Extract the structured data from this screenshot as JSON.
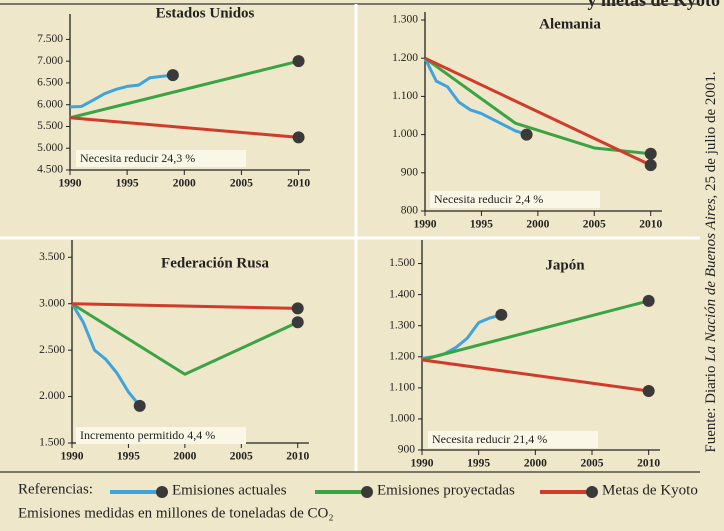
{
  "header": "y metas de Kyoto",
  "legend": {
    "title": "Referencias:",
    "entries": [
      {
        "name": "Emisiones actuales",
        "color": "#3fa3dd"
      },
      {
        "name": "Emisiones proyectadas",
        "color": "#3aa445"
      },
      {
        "name": "Metas de Kyoto",
        "color": "#d13b2b"
      }
    ]
  },
  "footnote": "Emisiones medidas en millones de toneladas de CO₂",
  "source": {
    "prefix": "Fuente: Diario ",
    "publication": "La Nación de Buenos Aires",
    "suffix": ", 25 de julio de 2001."
  },
  "chart_data": [
    {
      "type": "line",
      "title": "Estados Unidos",
      "annotation": "Necesita reducir 24,3 %",
      "xlim": [
        1990,
        2011
      ],
      "xticks": [
        1990,
        1995,
        2000,
        2005,
        2010
      ],
      "ylim": [
        4500,
        7900
      ],
      "yticks": [
        {
          "value": 4500,
          "label": "4.500"
        },
        {
          "value": 5000,
          "label": "5.000"
        },
        {
          "value": 5500,
          "label": "5.500"
        },
        {
          "value": 6000,
          "label": "6.000"
        },
        {
          "value": 6500,
          "label": "6.500"
        },
        {
          "value": 7000,
          "label": "7.000"
        },
        {
          "value": 7500,
          "label": "7.500"
        }
      ],
      "series": [
        {
          "x": [
            1990,
            1991,
            1992,
            1993,
            1994,
            1995,
            1996,
            1997,
            1998,
            1999
          ],
          "values": [
            5950,
            5960,
            6100,
            6250,
            6350,
            6420,
            6450,
            6620,
            6650,
            6680
          ]
        },
        {
          "x": [
            1990,
            2010
          ],
          "values": [
            5700,
            7000
          ]
        },
        {
          "x": [
            1990,
            2010
          ],
          "values": [
            5700,
            5250
          ]
        }
      ]
    },
    {
      "type": "line",
      "title": "Alemania",
      "annotation": "Necesita reducir 2,4 %",
      "xlim": [
        1990,
        2011
      ],
      "xticks": [
        1990,
        1995,
        2000,
        2005,
        2010
      ],
      "ylim": [
        800,
        1300
      ],
      "yticks": [
        800,
        900,
        {
          "value": 1000,
          "label": "1.000"
        },
        {
          "value": 1100,
          "label": "1.100"
        },
        {
          "value": 1200,
          "label": "1.200"
        },
        {
          "value": 1300,
          "label": "1.300"
        }
      ],
      "series": [
        {
          "x": [
            1990,
            1991,
            1992,
            1993,
            1994,
            1995,
            1996,
            1997,
            1998,
            1999
          ],
          "values": [
            1200,
            1140,
            1125,
            1085,
            1065,
            1055,
            1040,
            1025,
            1010,
            1000
          ]
        },
        {
          "x": [
            1990,
            1998,
            2005,
            2010
          ],
          "values": [
            1200,
            1030,
            965,
            950
          ]
        },
        {
          "x": [
            1990,
            2010
          ],
          "values": [
            1200,
            920
          ]
        }
      ]
    },
    {
      "type": "line",
      "title": "Federación Rusa",
      "annotation": "Incremento permitido 4,4 %",
      "xlim": [
        1990,
        2011
      ],
      "xticks": [
        1990,
        1995,
        2000,
        2005,
        2010
      ],
      "ylim": [
        1500,
        3600
      ],
      "yticks": [
        {
          "value": 1500,
          "label": "1.500"
        },
        {
          "value": 2000,
          "label": "2.000"
        },
        {
          "value": 2500,
          "label": "2.500"
        },
        {
          "value": 3000,
          "label": "3.000"
        },
        {
          "value": 3500,
          "label": "3.500"
        }
      ],
      "series": [
        {
          "x": [
            1990,
            1991,
            1992,
            1993,
            1994,
            1995,
            1996
          ],
          "values": [
            3000,
            2800,
            2500,
            2400,
            2250,
            2050,
            1900
          ]
        },
        {
          "x": [
            1990,
            2000,
            2010
          ],
          "values": [
            3000,
            2240,
            2800
          ]
        },
        {
          "x": [
            1990,
            2010
          ],
          "values": [
            3000,
            2950
          ]
        }
      ]
    },
    {
      "type": "line",
      "title": "Japón",
      "annotation": "Necesita reducir 21,4 %",
      "xlim": [
        1990,
        2011
      ],
      "xticks": [
        1990,
        1995,
        2000,
        2005,
        2010
      ],
      "ylim": [
        900,
        1550
      ],
      "yticks": [
        900,
        {
          "value": 1000,
          "label": "1.000"
        },
        {
          "value": 1100,
          "label": "1.100"
        },
        {
          "value": 1200,
          "label": "1.200"
        },
        {
          "value": 1300,
          "label": "1.300"
        },
        {
          "value": 1400,
          "label": "1.400"
        },
        {
          "value": 1500,
          "label": "1.500"
        }
      ],
      "series": [
        {
          "x": [
            1990,
            1991,
            1992,
            1993,
            1994,
            1995,
            1996,
            1997
          ],
          "values": [
            1195,
            1200,
            1210,
            1230,
            1260,
            1310,
            1325,
            1335
          ]
        },
        {
          "x": [
            1990,
            2010
          ],
          "values": [
            1190,
            1380
          ]
        },
        {
          "x": [
            1990,
            2010
          ],
          "values": [
            1190,
            1090
          ]
        }
      ]
    }
  ]
}
